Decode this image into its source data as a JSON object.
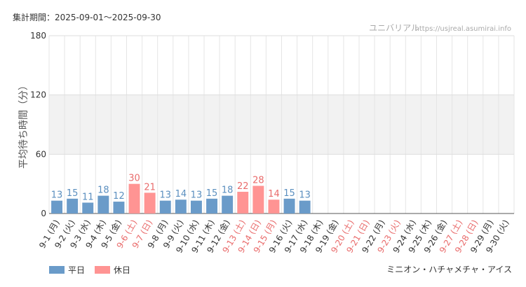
{
  "header": {
    "period": "集計期間：2025-09-01〜2025-09-30",
    "site_name": "ユニバリアル",
    "site_url": "https://usjreal.asumirai.info"
  },
  "colors": {
    "weekday": "#6a9bc9",
    "holiday": "#ff9493",
    "weekday_label": "#5b8fbf",
    "holiday_label": "#e96b6b",
    "band": "#f2f2f2",
    "grid": "#e5e5e5"
  },
  "legend": {
    "weekday": "平日",
    "holiday": "休日",
    "position": "bottom-left"
  },
  "footer": {
    "attraction": "ミニオン・ハチャメチャ・アイス"
  },
  "chart_data": {
    "type": "bar",
    "title": "",
    "xlabel": "",
    "ylabel": "平均待ち時間（分）",
    "ylim": [
      0,
      180
    ],
    "yticks": [
      "0",
      "60",
      "120",
      "180"
    ],
    "grid": true,
    "categories": [
      "9-1 (月)",
      "9-2 (火)",
      "9-3 (水)",
      "9-4 (木)",
      "9-5 (金)",
      "9-6 (土)",
      "9-7 (日)",
      "9-8 (月)",
      "9-9 (火)",
      "9-10 (水)",
      "9-11 (木)",
      "9-12 (金)",
      "9-13 (土)",
      "9-14 (日)",
      "9-15 (月)",
      "9-16 (火)",
      "9-17 (水)",
      "9-18 (木)",
      "9-19 (金)",
      "9-20 (土)",
      "9-21 (日)",
      "9-22 (月)",
      "9-23 (火)",
      "9-24 (水)",
      "9-25 (木)",
      "9-26 (金)",
      "9-27 (土)",
      "9-28 (日)",
      "9-29 (月)",
      "9-30 (火)"
    ],
    "day_type": [
      "weekday",
      "weekday",
      "weekday",
      "weekday",
      "weekday",
      "holiday",
      "holiday",
      "weekday",
      "weekday",
      "weekday",
      "weekday",
      "weekday",
      "holiday",
      "holiday",
      "holiday",
      "weekday",
      "weekday",
      "weekday",
      "weekday",
      "holiday",
      "holiday",
      "weekday",
      "holiday",
      "weekday",
      "weekday",
      "weekday",
      "holiday",
      "holiday",
      "weekday",
      "weekday"
    ],
    "values": [
      13,
      15,
      11,
      18,
      12,
      30,
      21,
      13,
      14,
      13,
      15,
      18,
      22,
      28,
      14,
      15,
      13,
      null,
      null,
      null,
      null,
      null,
      null,
      null,
      null,
      null,
      null,
      null,
      null,
      null
    ]
  }
}
